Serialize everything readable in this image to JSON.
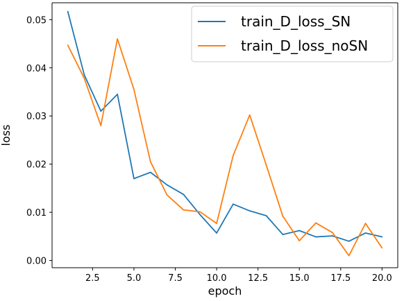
{
  "chart_data": {
    "type": "line",
    "xlabel": "epoch",
    "ylabel": "loss",
    "xlim": [
      0.05,
      20.95
    ],
    "ylim": [
      -0.0015,
      0.0535
    ],
    "xticks": [
      2.5,
      5.0,
      7.5,
      10.0,
      12.5,
      15.0,
      17.5,
      20.0
    ],
    "xtick_labels": [
      "2.5",
      "5.0",
      "7.5",
      "10.0",
      "12.5",
      "15.0",
      "17.5",
      "20.0"
    ],
    "yticks": [
      0.0,
      0.01,
      0.02,
      0.03,
      0.04,
      0.05
    ],
    "ytick_labels": [
      "0.00",
      "0.01",
      "0.02",
      "0.03",
      "0.04",
      "0.05"
    ],
    "grid": false,
    "legend_position": "top-right",
    "series": [
      {
        "name": "train_D_loss_SN",
        "color": "#1f77b4",
        "x": [
          1,
          2,
          3,
          4,
          5,
          6,
          7,
          8,
          9,
          10,
          11,
          12,
          13,
          14,
          15,
          16,
          17,
          18,
          19,
          20
        ],
        "values": [
          0.0517,
          0.0385,
          0.031,
          0.0345,
          0.017,
          0.0183,
          0.0157,
          0.0137,
          0.0095,
          0.0057,
          0.0117,
          0.0103,
          0.0093,
          0.0054,
          0.0062,
          0.0049,
          0.0051,
          0.004,
          0.0057,
          0.0049
        ]
      },
      {
        "name": "train_D_loss_noSN",
        "color": "#ff7f0e",
        "x": [
          1,
          2,
          3,
          4,
          5,
          6,
          7,
          8,
          9,
          10,
          11,
          12,
          13,
          14,
          15,
          16,
          17,
          18,
          19,
          20
        ],
        "values": [
          0.0447,
          0.0378,
          0.028,
          0.046,
          0.0355,
          0.0205,
          0.0136,
          0.0105,
          0.0101,
          0.0077,
          0.0218,
          0.0302,
          0.0198,
          0.0092,
          0.0041,
          0.0078,
          0.0058,
          0.001,
          0.0077,
          0.0026
        ]
      }
    ]
  }
}
